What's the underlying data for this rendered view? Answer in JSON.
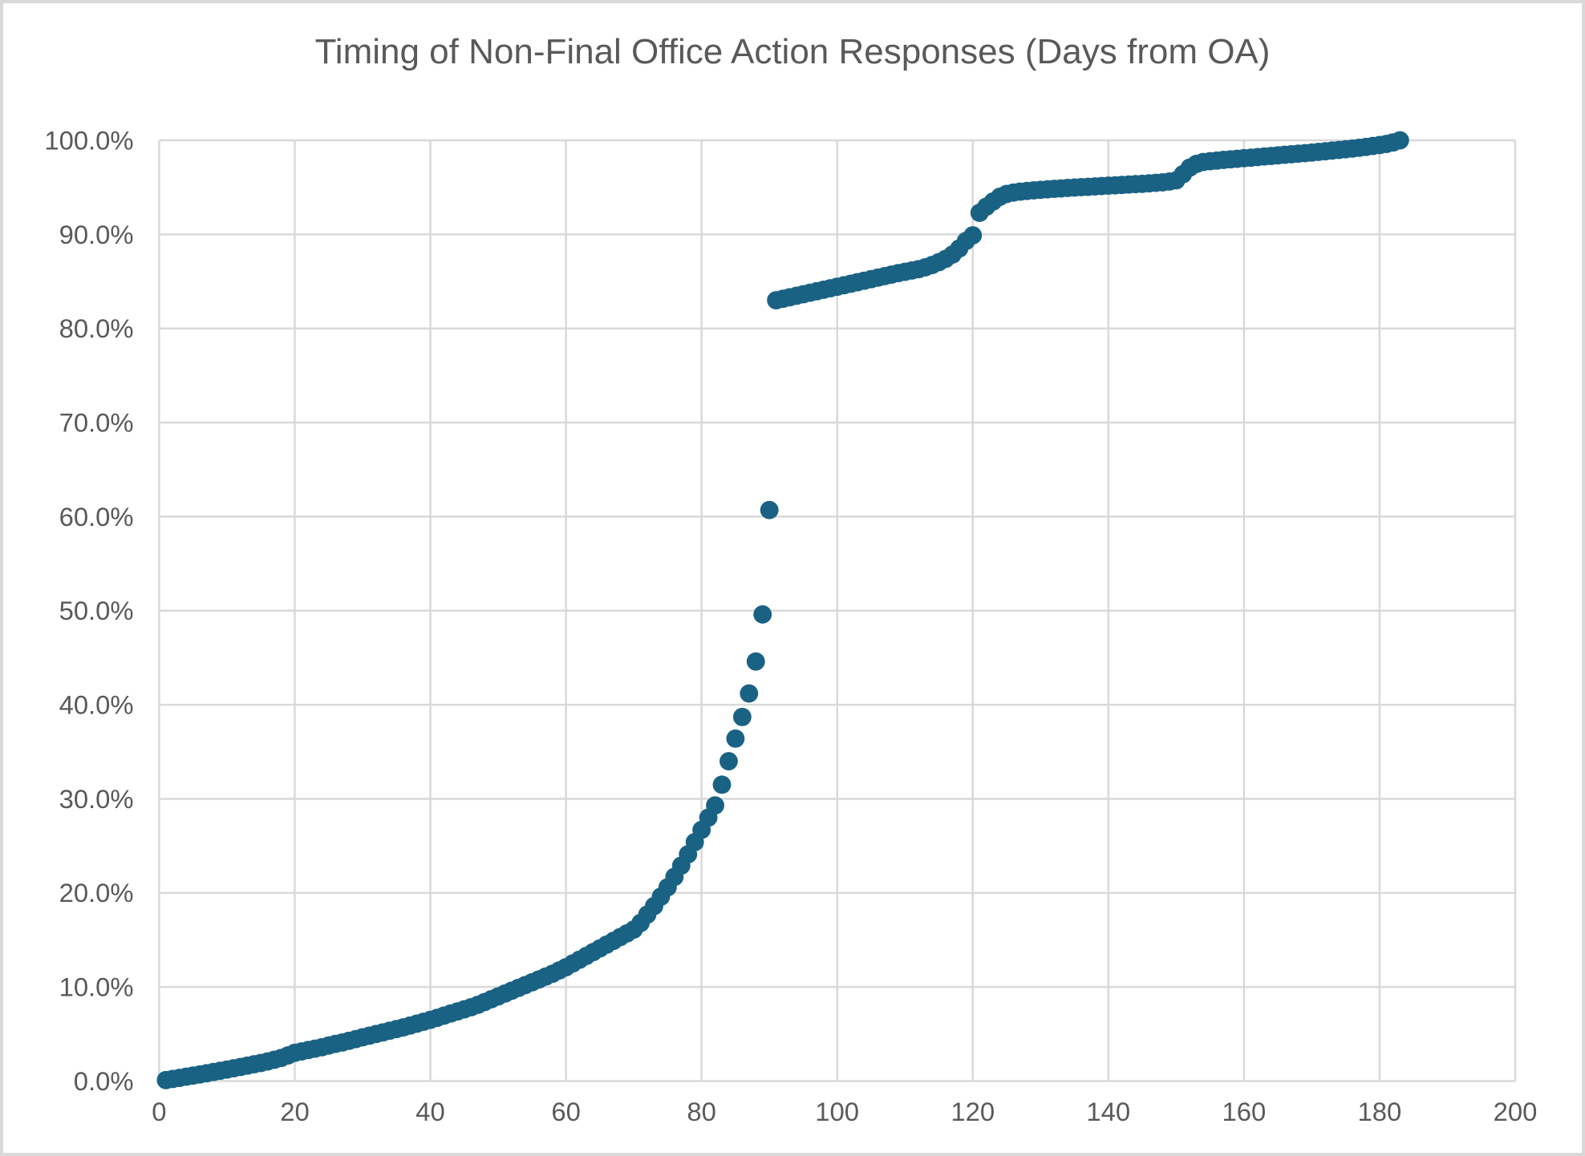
{
  "chart_data": {
    "type": "scatter",
    "title": "Timing of Non-Final Office Action Responses (Days from OA)",
    "xlabel": "",
    "ylabel": "",
    "legend": "none",
    "grid": true,
    "x_axis": {
      "min": 0,
      "max": 200,
      "tick_interval": 20,
      "ticks": [
        0,
        20,
        40,
        60,
        80,
        100,
        120,
        140,
        160,
        180,
        200
      ],
      "tick_labels": [
        "0",
        "20",
        "40",
        "60",
        "80",
        "100",
        "120",
        "140",
        "160",
        "180",
        "200"
      ]
    },
    "y_axis": {
      "min": 0,
      "max": 100,
      "tick_interval": 10,
      "ticks": [
        0,
        10,
        20,
        30,
        40,
        50,
        60,
        70,
        80,
        90,
        100
      ],
      "tick_labels": [
        "0.0%",
        "10.0%",
        "20.0%",
        "30.0%",
        "40.0%",
        "50.0%",
        "60.0%",
        "70.0%",
        "80.0%",
        "90.0%",
        "100.0%"
      ]
    },
    "colors": {
      "marker": "#1A6284",
      "gridline": "#D9D9D9",
      "axis_text": "#595959",
      "title_text": "#595959",
      "border": "#D9D9D9",
      "background": "#FFFFFF"
    },
    "series": [
      {
        "name": "Cumulative share of responses filed",
        "marker": "circle",
        "marker_radius_px": 11.5,
        "points": [
          [
            1,
            0.1
          ],
          [
            2,
            0.22
          ],
          [
            3,
            0.34
          ],
          [
            4,
            0.46
          ],
          [
            5,
            0.58
          ],
          [
            6,
            0.7
          ],
          [
            7,
            0.83
          ],
          [
            8,
            0.96
          ],
          [
            9,
            1.09
          ],
          [
            10,
            1.22
          ],
          [
            11,
            1.36
          ],
          [
            12,
            1.5
          ],
          [
            13,
            1.64
          ],
          [
            14,
            1.78
          ],
          [
            15,
            1.92
          ],
          [
            16,
            2.08
          ],
          [
            17,
            2.26
          ],
          [
            18,
            2.46
          ],
          [
            19,
            2.72
          ],
          [
            20,
            3.0
          ],
          [
            21,
            3.15
          ],
          [
            22,
            3.3
          ],
          [
            23,
            3.45
          ],
          [
            24,
            3.6
          ],
          [
            25,
            3.78
          ],
          [
            26,
            3.95
          ],
          [
            27,
            4.1
          ],
          [
            28,
            4.28
          ],
          [
            29,
            4.46
          ],
          [
            30,
            4.65
          ],
          [
            31,
            4.82
          ],
          [
            32,
            5.0
          ],
          [
            33,
            5.17
          ],
          [
            34,
            5.35
          ],
          [
            35,
            5.52
          ],
          [
            36,
            5.7
          ],
          [
            37,
            5.9
          ],
          [
            38,
            6.1
          ],
          [
            39,
            6.3
          ],
          [
            40,
            6.5
          ],
          [
            41,
            6.72
          ],
          [
            42,
            6.95
          ],
          [
            43,
            7.18
          ],
          [
            44,
            7.4
          ],
          [
            45,
            7.62
          ],
          [
            46,
            7.85
          ],
          [
            47,
            8.1
          ],
          [
            48,
            8.4
          ],
          [
            49,
            8.7
          ],
          [
            50,
            9.0
          ],
          [
            51,
            9.3
          ],
          [
            52,
            9.6
          ],
          [
            53,
            9.9
          ],
          [
            54,
            10.2
          ],
          [
            55,
            10.5
          ],
          [
            56,
            10.8
          ],
          [
            57,
            11.1
          ],
          [
            58,
            11.4
          ],
          [
            59,
            11.75
          ],
          [
            60,
            12.1
          ],
          [
            61,
            12.5
          ],
          [
            62,
            12.9
          ],
          [
            63,
            13.3
          ],
          [
            64,
            13.7
          ],
          [
            65,
            14.1
          ],
          [
            66,
            14.5
          ],
          [
            67,
            14.9
          ],
          [
            68,
            15.3
          ],
          [
            69,
            15.7
          ],
          [
            70,
            16.1
          ],
          [
            71,
            16.8
          ],
          [
            72,
            17.7
          ],
          [
            73,
            18.6
          ],
          [
            74,
            19.6
          ],
          [
            75,
            20.6
          ],
          [
            76,
            21.7
          ],
          [
            77,
            22.9
          ],
          [
            78,
            24.1
          ],
          [
            79,
            25.4
          ],
          [
            80,
            26.7
          ],
          [
            81,
            28.0
          ],
          [
            82,
            29.3
          ],
          [
            83,
            31.5
          ],
          [
            84,
            34.0
          ],
          [
            85,
            36.4
          ],
          [
            86,
            38.7
          ],
          [
            87,
            41.2
          ],
          [
            88,
            44.6
          ],
          [
            89,
            49.6
          ],
          [
            90,
            60.7
          ],
          [
            91,
            83.0
          ],
          [
            92,
            83.16
          ],
          [
            93,
            83.32
          ],
          [
            94,
            83.48
          ],
          [
            95,
            83.64
          ],
          [
            96,
            83.8
          ],
          [
            97,
            83.96
          ],
          [
            98,
            84.12
          ],
          [
            99,
            84.28
          ],
          [
            100,
            84.44
          ],
          [
            101,
            84.6
          ],
          [
            102,
            84.76
          ],
          [
            103,
            84.92
          ],
          [
            104,
            85.08
          ],
          [
            105,
            85.24
          ],
          [
            106,
            85.4
          ],
          [
            107,
            85.56
          ],
          [
            108,
            85.72
          ],
          [
            109,
            85.88
          ],
          [
            110,
            86.02
          ],
          [
            111,
            86.16
          ],
          [
            112,
            86.3
          ],
          [
            113,
            86.5
          ],
          [
            114,
            86.75
          ],
          [
            115,
            87.05
          ],
          [
            116,
            87.4
          ],
          [
            117,
            87.85
          ],
          [
            118,
            88.5
          ],
          [
            119,
            89.3
          ],
          [
            120,
            89.9
          ],
          [
            121,
            92.3
          ],
          [
            122,
            92.95
          ],
          [
            123,
            93.5
          ],
          [
            124,
            94.0
          ],
          [
            125,
            94.3
          ],
          [
            126,
            94.45
          ],
          [
            127,
            94.55
          ],
          [
            128,
            94.62
          ],
          [
            129,
            94.68
          ],
          [
            130,
            94.74
          ],
          [
            131,
            94.79
          ],
          [
            132,
            94.84
          ],
          [
            133,
            94.89
          ],
          [
            134,
            94.94
          ],
          [
            135,
            94.98
          ],
          [
            136,
            95.02
          ],
          [
            137,
            95.06
          ],
          [
            138,
            95.1
          ],
          [
            139,
            95.14
          ],
          [
            140,
            95.18
          ],
          [
            141,
            95.22
          ],
          [
            142,
            95.26
          ],
          [
            143,
            95.3
          ],
          [
            144,
            95.34
          ],
          [
            145,
            95.38
          ],
          [
            146,
            95.43
          ],
          [
            147,
            95.48
          ],
          [
            148,
            95.54
          ],
          [
            149,
            95.62
          ],
          [
            150,
            95.75
          ],
          [
            151,
            96.4
          ],
          [
            152,
            97.1
          ],
          [
            153,
            97.5
          ],
          [
            154,
            97.7
          ],
          [
            155,
            97.78
          ],
          [
            156,
            97.85
          ],
          [
            157,
            97.92
          ],
          [
            158,
            97.98
          ],
          [
            159,
            98.04
          ],
          [
            160,
            98.1
          ],
          [
            161,
            98.16
          ],
          [
            162,
            98.22
          ],
          [
            163,
            98.28
          ],
          [
            164,
            98.34
          ],
          [
            165,
            98.4
          ],
          [
            166,
            98.46
          ],
          [
            167,
            98.52
          ],
          [
            168,
            98.58
          ],
          [
            169,
            98.64
          ],
          [
            170,
            98.7
          ],
          [
            171,
            98.77
          ],
          [
            172,
            98.84
          ],
          [
            173,
            98.91
          ],
          [
            174,
            98.98
          ],
          [
            175,
            99.05
          ],
          [
            176,
            99.13
          ],
          [
            177,
            99.21
          ],
          [
            178,
            99.3
          ],
          [
            179,
            99.4
          ],
          [
            180,
            99.5
          ],
          [
            181,
            99.62
          ],
          [
            182,
            99.78
          ],
          [
            183,
            100.0
          ]
        ]
      }
    ]
  }
}
